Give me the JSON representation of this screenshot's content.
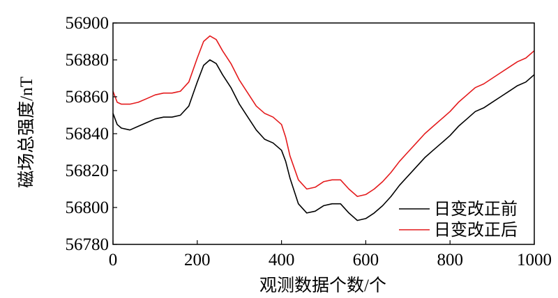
{
  "chart_data": {
    "type": "line",
    "title": "",
    "xlabel": "观测数据个数/个",
    "ylabel": "磁场总强度/nT",
    "xlim": [
      0,
      1000
    ],
    "ylim": [
      56780,
      56900
    ],
    "xticks": [
      0,
      200,
      400,
      600,
      800,
      1000
    ],
    "yticks": [
      56780,
      56800,
      56820,
      56840,
      56860,
      56880,
      56900
    ],
    "xtick_labels": [
      "0",
      "200",
      "400",
      "600",
      "800",
      "1000"
    ],
    "ytick_labels": [
      "56780",
      "56800",
      "56820",
      "56840",
      "56860",
      "56880",
      "56900"
    ],
    "grid": false,
    "legend_position": "lower-right",
    "series": [
      {
        "name": "日变改正前",
        "color": "#000000",
        "x": [
          0,
          10,
          20,
          40,
          60,
          80,
          100,
          120,
          140,
          160,
          180,
          200,
          215,
          230,
          245,
          260,
          280,
          300,
          320,
          340,
          360,
          380,
          400,
          410,
          420,
          440,
          460,
          480,
          500,
          520,
          540,
          560,
          580,
          600,
          620,
          640,
          660,
          680,
          700,
          720,
          740,
          760,
          780,
          800,
          820,
          840,
          860,
          880,
          900,
          920,
          940,
          960,
          980,
          1000
        ],
        "values": [
          56851,
          56845,
          56843,
          56842,
          56844,
          56846,
          56848,
          56849,
          56849,
          56850,
          56855,
          56868,
          56877,
          56880,
          56878,
          56872,
          56865,
          56856,
          56849,
          56842,
          56837,
          56835,
          56831,
          56825,
          56816,
          56802,
          56797,
          56798,
          56801,
          56802,
          56802,
          56797,
          56793,
          56794,
          56797,
          56801,
          56806,
          56812,
          56817,
          56822,
          56827,
          56831,
          56835,
          56839,
          56844,
          56848,
          56852,
          56854,
          56857,
          56860,
          56863,
          56866,
          56868,
          56872
        ]
      },
      {
        "name": "日变改正后",
        "color": "#e41a1c",
        "x": [
          0,
          10,
          20,
          40,
          60,
          80,
          100,
          120,
          140,
          160,
          180,
          200,
          215,
          230,
          245,
          260,
          280,
          300,
          320,
          340,
          360,
          380,
          400,
          410,
          420,
          440,
          460,
          480,
          500,
          520,
          540,
          560,
          580,
          600,
          620,
          640,
          660,
          680,
          700,
          720,
          740,
          760,
          780,
          800,
          820,
          840,
          860,
          880,
          900,
          920,
          940,
          960,
          980,
          1000
        ],
        "values": [
          56863,
          56857,
          56856,
          56856,
          56857,
          56859,
          56861,
          56862,
          56862,
          56863,
          56868,
          56881,
          56890,
          56893,
          56891,
          56885,
          56878,
          56869,
          56862,
          56855,
          56851,
          56849,
          56845,
          56838,
          56828,
          56815,
          56810,
          56811,
          56814,
          56815,
          56815,
          56810,
          56806,
          56807,
          56810,
          56814,
          56819,
          56825,
          56830,
          56835,
          56840,
          56844,
          56848,
          56852,
          56857,
          56861,
          56865,
          56867,
          56870,
          56873,
          56876,
          56879,
          56881,
          56885
        ]
      }
    ]
  }
}
